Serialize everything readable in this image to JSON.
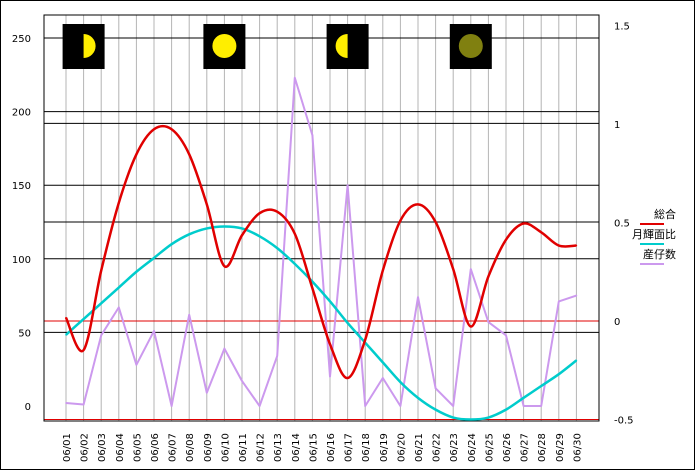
{
  "chart_data": {
    "type": "line",
    "title": "",
    "x": [
      "06/01",
      "06/02",
      "06/03",
      "06/04",
      "06/05",
      "06/06",
      "06/07",
      "06/08",
      "06/09",
      "06/10",
      "06/11",
      "06/12",
      "06/13",
      "06/14",
      "06/15",
      "06/16",
      "06/17",
      "06/18",
      "06/19",
      "06/20",
      "06/21",
      "06/22",
      "06/23",
      "06/24",
      "06/25",
      "06/26",
      "06/27",
      "06/28",
      "06/29",
      "06/30"
    ],
    "y_left": {
      "ylim": [
        -10,
        260
      ],
      "ticks": [
        0,
        50,
        100,
        150,
        200,
        250
      ]
    },
    "y_right": {
      "ylim": [
        -0.5,
        1.5
      ],
      "ticks": [
        "-0.5",
        "0",
        "0.5",
        "1",
        "1.5"
      ]
    },
    "grid": true,
    "legend_placement": "right",
    "reference_lines": {
      "black_left": [
        50,
        100,
        125,
        150,
        192,
        200,
        250
      ],
      "red_right": [
        -0.5,
        0
      ]
    },
    "series": [
      {
        "name": "総合",
        "axis": "left",
        "color": "#e00000",
        "smooth": true,
        "values": [
          60,
          38,
          92,
          138,
          171,
          188,
          188,
          171,
          137,
          95,
          116,
          131,
          132,
          117,
          80,
          42,
          19,
          45,
          92,
          126,
          137,
          125,
          93,
          54,
          88,
          113,
          124,
          118,
          109,
          109
        ]
      },
      {
        "name": "月輝面比",
        "axis": "right",
        "color": "#00cccc",
        "smooth": true,
        "values": [
          -0.07,
          0.01,
          0.09,
          0.17,
          0.25,
          0.32,
          0.39,
          0.44,
          0.47,
          0.48,
          0.47,
          0.43,
          0.37,
          0.29,
          0.2,
          0.1,
          -0.01,
          -0.11,
          -0.21,
          -0.31,
          -0.39,
          -0.45,
          -0.49,
          -0.5,
          -0.49,
          -0.45,
          -0.39,
          -0.33,
          -0.27,
          -0.2
        ]
      },
      {
        "name": "産仔数",
        "axis": "left",
        "color": "#cc99ee",
        "smooth": false,
        "values": [
          2,
          1,
          48,
          67,
          28,
          51,
          0,
          62,
          9,
          39,
          17,
          0,
          34,
          223,
          184,
          20,
          150,
          0,
          19,
          0,
          74,
          12,
          0,
          93,
          57,
          48,
          0,
          0,
          71,
          75
        ]
      }
    ],
    "moon_icons": [
      {
        "date": "06/02",
        "phase": "first-quarter",
        "color": "#ffee00"
      },
      {
        "date": "06/10",
        "phase": "full",
        "color": "#ffee00"
      },
      {
        "date": "06/17",
        "phase": "last-quarter",
        "color": "#ffee00"
      },
      {
        "date": "06/24",
        "phase": "new",
        "color": "#808010"
      }
    ]
  }
}
